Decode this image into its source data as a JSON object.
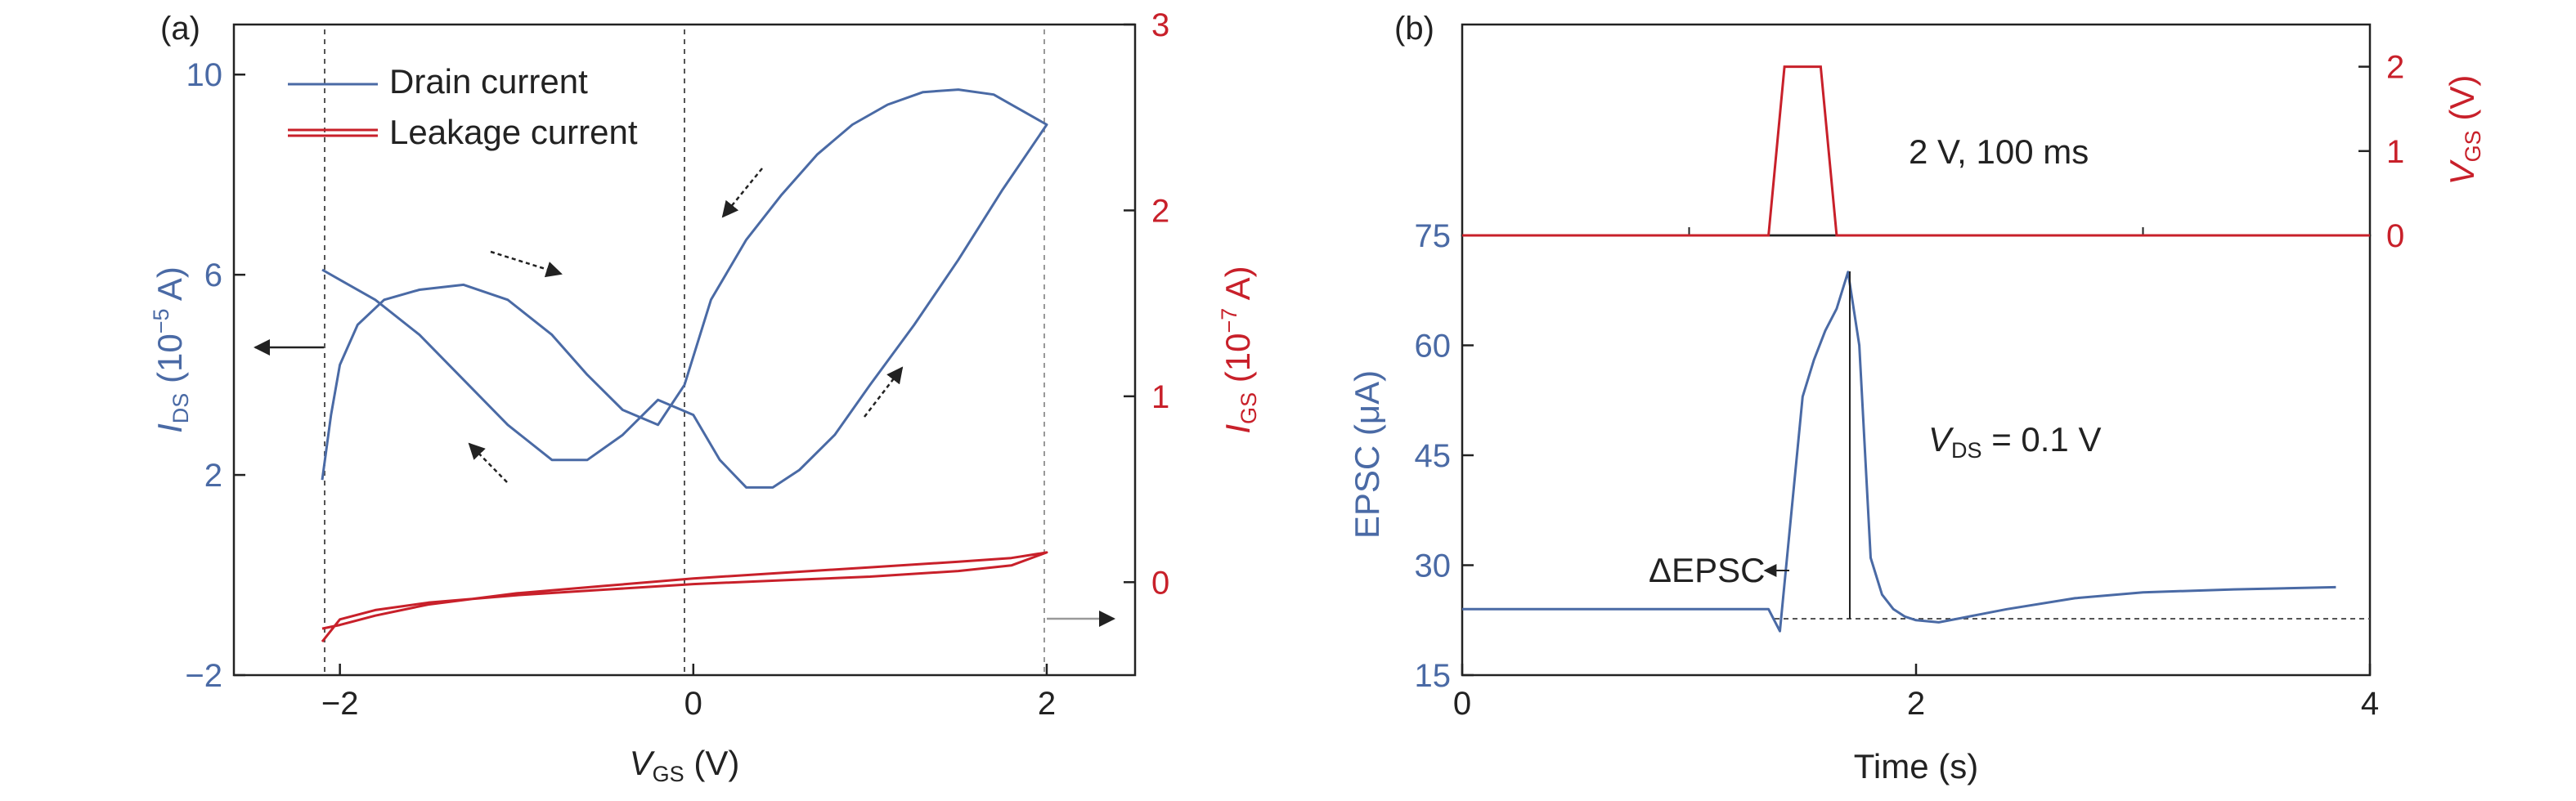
{
  "colors": {
    "blue": "#4a6aa5",
    "red": "#c8202a",
    "black": "#222222",
    "gray": "#888888"
  },
  "panel_a": {
    "label": "(a)",
    "legend": [
      "Drain current",
      "Leakage current"
    ],
    "y_left": {
      "symbol": "I",
      "sub": "DS",
      "rest": " (10",
      "exp": "−5",
      "unit": " A)"
    },
    "y_right": {
      "symbol": "I",
      "sub": "GS",
      "rest": " (10",
      "exp": "−7",
      "unit": " A)"
    },
    "x_axis": {
      "symbol": "V",
      "sub": "GS",
      "unit": " (V)"
    }
  },
  "panel_b": {
    "label": "(b)",
    "pulse_annotation": "2 V, 100 ms",
    "vds": {
      "symbol": "V",
      "sub": "DS",
      "rest": " = 0.1 V"
    },
    "delta": "ΔEPSC",
    "y_left_label": "EPSC (μA)",
    "y_right": {
      "symbol": "V",
      "sub": "GS",
      "unit": " (V)"
    },
    "x_label": "Time (s)"
  },
  "chart_data": [
    {
      "type": "line",
      "panel": "a",
      "xlim": [
        -2.6,
        2.5
      ],
      "ylim_left": [
        -2,
        11
      ],
      "ylim_right": [
        -0.5,
        3.0
      ],
      "x_ticks": [
        "−2",
        "0",
        "2"
      ],
      "y_left_ticks": [
        "−2",
        "2",
        "6",
        "10"
      ],
      "y_right_ticks": [
        "0",
        "1",
        "2",
        "3"
      ],
      "series": [
        {
          "name": "Drain current",
          "axis": "left",
          "x": [
            -2.1,
            -2.05,
            -2.0,
            -1.9,
            -1.75,
            -1.55,
            -1.3,
            -1.05,
            -0.8,
            -0.6,
            -0.4,
            -0.2,
            -0.05,
            0.1,
            0.3,
            0.5,
            0.7,
            0.9,
            1.1,
            1.3,
            1.5,
            1.7,
            1.85,
            2.0,
            1.75,
            1.5,
            1.25,
            1.0,
            0.8,
            0.6,
            0.45,
            0.3,
            0.15,
            0.0,
            -0.2,
            -0.4,
            -0.6,
            -0.8,
            -1.05,
            -1.3,
            -1.55,
            -1.8,
            -2.0,
            -2.1
          ],
          "y": [
            1.9,
            3.2,
            4.2,
            5.0,
            5.5,
            5.7,
            5.8,
            5.5,
            4.8,
            4.0,
            3.3,
            3.0,
            3.8,
            5.5,
            6.7,
            7.6,
            8.4,
            9.0,
            9.4,
            9.65,
            9.7,
            9.6,
            9.3,
            9.0,
            7.7,
            6.3,
            5.0,
            3.8,
            2.8,
            2.1,
            1.75,
            1.75,
            2.3,
            3.2,
            3.5,
            2.8,
            2.3,
            2.3,
            3.0,
            3.9,
            4.8,
            5.5,
            5.9,
            6.1
          ]
        },
        {
          "name": "Leakage current",
          "axis": "right",
          "x": [
            -2.1,
            -2.0,
            -1.8,
            -1.5,
            -1.0,
            -0.5,
            0.0,
            0.5,
            1.0,
            1.5,
            1.8,
            2.0,
            1.8,
            1.5,
            1.0,
            0.5,
            0.0,
            -0.5,
            -1.0,
            -1.5,
            -1.8,
            -2.0,
            -2.05,
            -2.1
          ],
          "y": [
            -0.25,
            -0.23,
            -0.18,
            -0.12,
            -0.06,
            -0.02,
            0.02,
            0.05,
            0.08,
            0.11,
            0.13,
            0.16,
            0.09,
            0.06,
            0.03,
            0.01,
            -0.01,
            -0.04,
            -0.07,
            -0.11,
            -0.15,
            -0.2,
            -0.26,
            -0.32
          ]
        }
      ]
    },
    {
      "type": "line",
      "panel": "b",
      "xlim": [
        0,
        4
      ],
      "ylim_bottom": [
        15,
        75
      ],
      "ylim_top": [
        0,
        2.5
      ],
      "x_ticks": [
        "0",
        "2",
        "4"
      ],
      "y_bottom_ticks": [
        "15",
        "30",
        "45",
        "60",
        "75"
      ],
      "y_top_ticks": [
        "0",
        "1",
        "2"
      ],
      "series": [
        {
          "name": "EPSC",
          "x": [
            0.0,
            1.35,
            1.4,
            1.45,
            1.5,
            1.55,
            1.6,
            1.65,
            1.7,
            1.75,
            1.8,
            1.85,
            1.9,
            1.95,
            2.0,
            2.1,
            2.2,
            2.4,
            2.7,
            3.0,
            3.4,
            3.85
          ],
          "y": [
            24,
            24,
            21,
            37,
            53,
            58,
            62,
            65,
            70,
            60,
            31,
            26,
            24,
            23,
            22.5,
            22.2,
            22.8,
            24.0,
            25.5,
            26.3,
            26.7,
            27.0
          ]
        },
        {
          "name": "VGS",
          "x": [
            0.0,
            1.35,
            1.42,
            1.58,
            1.65,
            4.0
          ],
          "y": [
            0,
            0,
            2,
            2,
            0,
            0
          ]
        }
      ]
    }
  ]
}
